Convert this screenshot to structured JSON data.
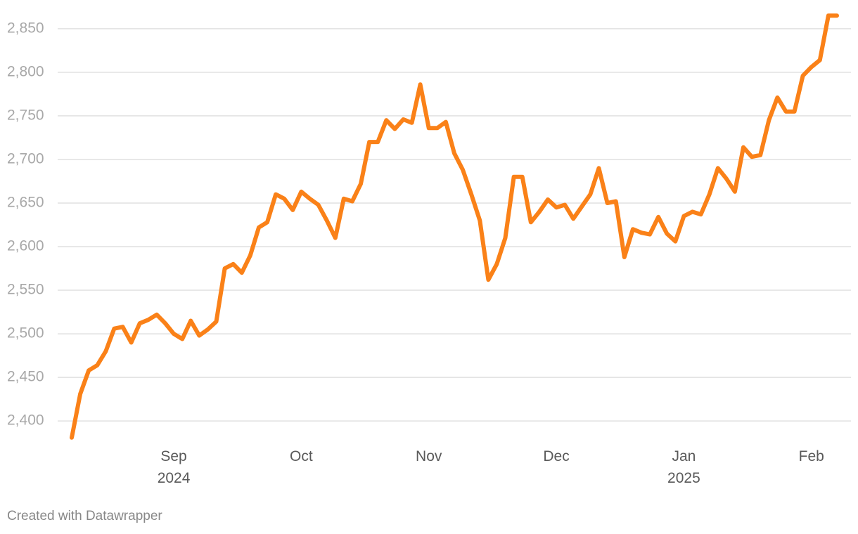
{
  "chart_data": {
    "type": "line",
    "categories": [
      null,
      null,
      null,
      null,
      null,
      null,
      null,
      null,
      null,
      null,
      null,
      null,
      "Sep\n2024",
      null,
      null,
      null,
      null,
      null,
      null,
      null,
      null,
      null,
      null,
      null,
      null,
      null,
      null,
      "Oct",
      null,
      null,
      null,
      null,
      null,
      null,
      null,
      null,
      null,
      null,
      null,
      null,
      null,
      null,
      "Nov",
      null,
      null,
      null,
      null,
      null,
      null,
      null,
      null,
      null,
      null,
      null,
      null,
      null,
      null,
      "Dec",
      null,
      null,
      null,
      null,
      null,
      null,
      null,
      null,
      null,
      null,
      null,
      null,
      null,
      null,
      "Jan\n2025",
      null,
      null,
      null,
      null,
      null,
      null,
      null,
      null,
      null,
      null,
      null,
      null,
      null,
      null,
      "Feb",
      null,
      null,
      null
    ],
    "values": [
      2381,
      2431,
      2458,
      2464,
      2480,
      2506,
      2508,
      2490,
      2512,
      2516,
      2522,
      2512,
      2500,
      2494,
      2515,
      2498,
      2505,
      2514,
      2575,
      2580,
      2570,
      2590,
      2622,
      2628,
      2660,
      2655,
      2642,
      2663,
      2655,
      2648,
      2630,
      2610,
      2655,
      2652,
      2672,
      2720,
      2720,
      2745,
      2735,
      2746,
      2742,
      2786,
      2736,
      2736,
      2743,
      2707,
      2688,
      2660,
      2630,
      2562,
      2580,
      2610,
      2680,
      2680,
      2628,
      2640,
      2654,
      2645,
      2648,
      2632,
      2646,
      2660,
      2690,
      2650,
      2652,
      2588,
      2620,
      2616,
      2614,
      2634,
      2615,
      2606,
      2635,
      2640,
      2637,
      2660,
      2690,
      2678,
      2663,
      2714,
      2703,
      2705,
      2745,
      2771,
      2755,
      2755,
      2796,
      2806,
      2814,
      2865,
      2865
    ],
    "color": "#fa8118",
    "ylim": [
      2380,
      2870
    ],
    "yticks": [
      {
        "value": 2400,
        "label": "2,400"
      },
      {
        "value": 2450,
        "label": "2,450"
      },
      {
        "value": 2500,
        "label": "2,500"
      },
      {
        "value": 2550,
        "label": "2,550"
      },
      {
        "value": 2600,
        "label": "2,600"
      },
      {
        "value": 2650,
        "label": "2,650"
      },
      {
        "value": 2700,
        "label": "2,700"
      },
      {
        "value": 2750,
        "label": "2,750"
      },
      {
        "value": 2800,
        "label": "2,800"
      },
      {
        "value": 2850,
        "label": "2,850"
      }
    ],
    "grid": true,
    "credit": "Created with Datawrapper"
  }
}
